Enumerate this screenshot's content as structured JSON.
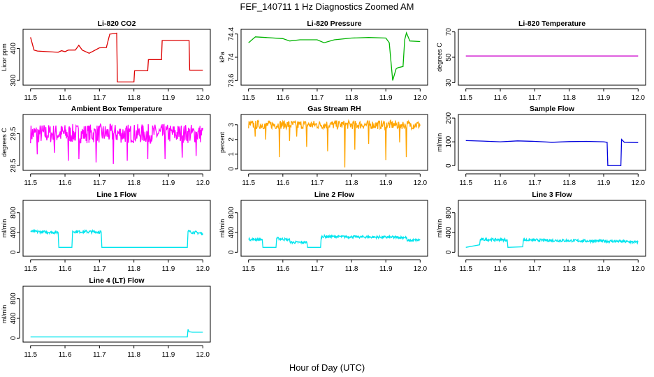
{
  "title": "FEF_140711  1 Hz Diagnostics Zoomed AM",
  "xlabel": "Hour of Day (UTC)",
  "chart_data": [
    {
      "type": "line",
      "title": "Li-820 CO2",
      "ylabel": "Licor ppm",
      "color": "#dd0000",
      "xlim": [
        11.5,
        12.0
      ],
      "ylim": [
        285,
        460
      ],
      "yticks": [
        300,
        400
      ],
      "x": [
        11.5,
        11.51,
        11.52,
        11.55,
        11.58,
        11.59,
        11.6,
        11.61,
        11.63,
        11.64,
        11.65,
        11.67,
        11.7,
        11.72,
        11.73,
        11.75,
        11.752,
        11.8,
        11.802,
        11.84,
        11.842,
        11.88,
        11.882,
        11.96,
        11.962,
        12.0
      ],
      "y": [
        435,
        395,
        392,
        390,
        388,
        393,
        390,
        395,
        395,
        410,
        395,
        385,
        402,
        403,
        445,
        448,
        295,
        295,
        330,
        330,
        365,
        365,
        425,
        425,
        332,
        332
      ]
    },
    {
      "type": "line",
      "title": "Li-820 Pressure",
      "ylabel": "kPa",
      "color": "#00b400",
      "xlim": [
        11.5,
        12.0
      ],
      "ylim": [
        73.52,
        74.48
      ],
      "yticks": [
        73.6,
        74.0,
        74.4
      ],
      "x": [
        11.5,
        11.52,
        11.55,
        11.6,
        11.62,
        11.65,
        11.7,
        11.72,
        11.75,
        11.8,
        11.85,
        11.9,
        11.91,
        11.92,
        11.93,
        11.935,
        11.95,
        11.955,
        11.96,
        11.97,
        12.0
      ],
      "y": [
        74.25,
        74.35,
        74.34,
        74.32,
        74.28,
        74.3,
        74.3,
        74.25,
        74.3,
        74.33,
        74.34,
        74.33,
        74.25,
        73.6,
        73.8,
        73.82,
        73.84,
        74.3,
        74.42,
        74.28,
        74.27
      ]
    },
    {
      "type": "line",
      "title": "Li-820 Temperature",
      "ylabel": "degrees C",
      "color": "#cc00cc",
      "xlim": [
        11.5,
        12.0
      ],
      "ylim": [
        28,
        72
      ],
      "yticks": [
        30,
        50,
        70
      ],
      "x": [
        11.5,
        12.0
      ],
      "y": [
        51,
        51
      ]
    },
    {
      "type": "line",
      "title": "Ambient Box Temperature",
      "ylabel": "degrees C",
      "color": "#ff00ff",
      "xlim": [
        11.5,
        12.0
      ],
      "ylim": [
        28.35,
        30.1
      ],
      "yticks": [
        28.5,
        29.5
      ],
      "noise": {
        "center": 29.5,
        "band": 0.6,
        "spikes": [
          [
            11.52,
            28.85
          ],
          [
            11.57,
            28.9
          ],
          [
            11.61,
            28.65
          ],
          [
            11.64,
            28.7
          ],
          [
            11.69,
            28.6
          ],
          [
            11.74,
            28.55
          ],
          [
            11.78,
            28.65
          ],
          [
            11.84,
            28.7
          ],
          [
            11.89,
            28.7
          ],
          [
            11.94,
            28.75
          ],
          [
            11.98,
            28.8
          ]
        ]
      }
    },
    {
      "type": "line",
      "title": "Gas Stream RH",
      "ylabel": "percent",
      "color": "#ffa500",
      "xlim": [
        11.5,
        12.0
      ],
      "ylim": [
        -0.1,
        3.7
      ],
      "yticks": [
        0,
        1,
        2,
        3
      ],
      "noise": {
        "center": 3.0,
        "band": 0.6,
        "spikes": [
          [
            11.52,
            2.2
          ],
          [
            11.55,
            2.0
          ],
          [
            11.59,
            0.8
          ],
          [
            11.62,
            1.9
          ],
          [
            11.64,
            2.2
          ],
          [
            11.67,
            1.5
          ],
          [
            11.73,
            1.2
          ],
          [
            11.78,
            0.1
          ],
          [
            11.81,
            1.3
          ],
          [
            11.85,
            1.7
          ],
          [
            11.9,
            0.6
          ],
          [
            11.94,
            1.8
          ],
          [
            11.96,
            0.8
          ]
        ]
      }
    },
    {
      "type": "line",
      "title": "Sample Flow",
      "ylabel": "ml/min",
      "color": "#0000dd",
      "xlim": [
        11.5,
        12.0
      ],
      "ylim": [
        -20,
        215
      ],
      "yticks": [
        0,
        100,
        200
      ],
      "x": [
        11.5,
        11.55,
        11.6,
        11.65,
        11.7,
        11.75,
        11.8,
        11.85,
        11.9,
        11.91,
        11.912,
        11.95,
        11.952,
        11.96,
        12.0
      ],
      "y": [
        105,
        103,
        100,
        104,
        102,
        98,
        101,
        102,
        100,
        98,
        0,
        0,
        110,
        98,
        97
      ]
    },
    {
      "type": "line",
      "title": "Line 1 Flow",
      "ylabel": "ml/min",
      "color": "#00e5ee",
      "xlim": [
        11.5,
        12.0
      ],
      "ylim": [
        -80,
        1050
      ],
      "yticks": [
        0,
        400,
        800
      ],
      "x": [
        11.5,
        11.58,
        11.582,
        11.62,
        11.622,
        11.705,
        11.707,
        11.955,
        11.957,
        12.0
      ],
      "y": [
        420,
        400,
        100,
        100,
        420,
        410,
        100,
        100,
        420,
        380
      ],
      "noisy": [
        [
          11.5,
          11.58
        ],
        [
          11.622,
          11.705
        ],
        [
          11.957,
          12.0
        ]
      ],
      "amp": 60
    },
    {
      "type": "line",
      "title": "Line 2 Flow",
      "ylabel": "ml/min",
      "color": "#00e5ee",
      "xlim": [
        11.5,
        12.0
      ],
      "ylim": [
        -80,
        1050
      ],
      "yticks": [
        0,
        400,
        800
      ],
      "x": [
        11.5,
        11.54,
        11.542,
        11.58,
        11.582,
        11.62,
        11.622,
        11.67,
        11.672,
        11.71,
        11.712,
        11.96,
        11.962,
        12.0
      ],
      "y": [
        260,
        260,
        100,
        100,
        280,
        250,
        200,
        200,
        100,
        100,
        320,
        300,
        230,
        250
      ],
      "noisy": [
        [
          11.5,
          11.54
        ],
        [
          11.582,
          11.67
        ],
        [
          11.712,
          12.0
        ]
      ],
      "amp": 50
    },
    {
      "type": "line",
      "title": "Line 3 Flow",
      "ylabel": "ml/min",
      "color": "#00e5ee",
      "xlim": [
        11.5,
        12.0
      ],
      "ylim": [
        -80,
        1050
      ],
      "yticks": [
        0,
        400,
        800
      ],
      "x": [
        11.5,
        11.54,
        11.542,
        11.62,
        11.622,
        11.665,
        11.667,
        11.75,
        11.85,
        11.95,
        12.0
      ],
      "y": [
        100,
        150,
        260,
        250,
        100,
        110,
        250,
        240,
        230,
        220,
        200
      ],
      "noisy": [
        [
          11.542,
          11.62
        ],
        [
          11.667,
          12.0
        ]
      ],
      "amp": 55
    },
    {
      "type": "line",
      "title": "Line 4 (LT) Flow",
      "ylabel": "ml/min",
      "color": "#00e5ee",
      "xlim": [
        11.5,
        12.0
      ],
      "ylim": [
        -80,
        1050
      ],
      "yticks": [
        0,
        400,
        800
      ],
      "x": [
        11.5,
        11.6,
        11.7,
        11.8,
        11.9,
        11.955,
        11.957,
        11.96,
        11.97,
        12.0
      ],
      "y": [
        25,
        25,
        25,
        25,
        25,
        25,
        180,
        130,
        120,
        120
      ]
    }
  ]
}
